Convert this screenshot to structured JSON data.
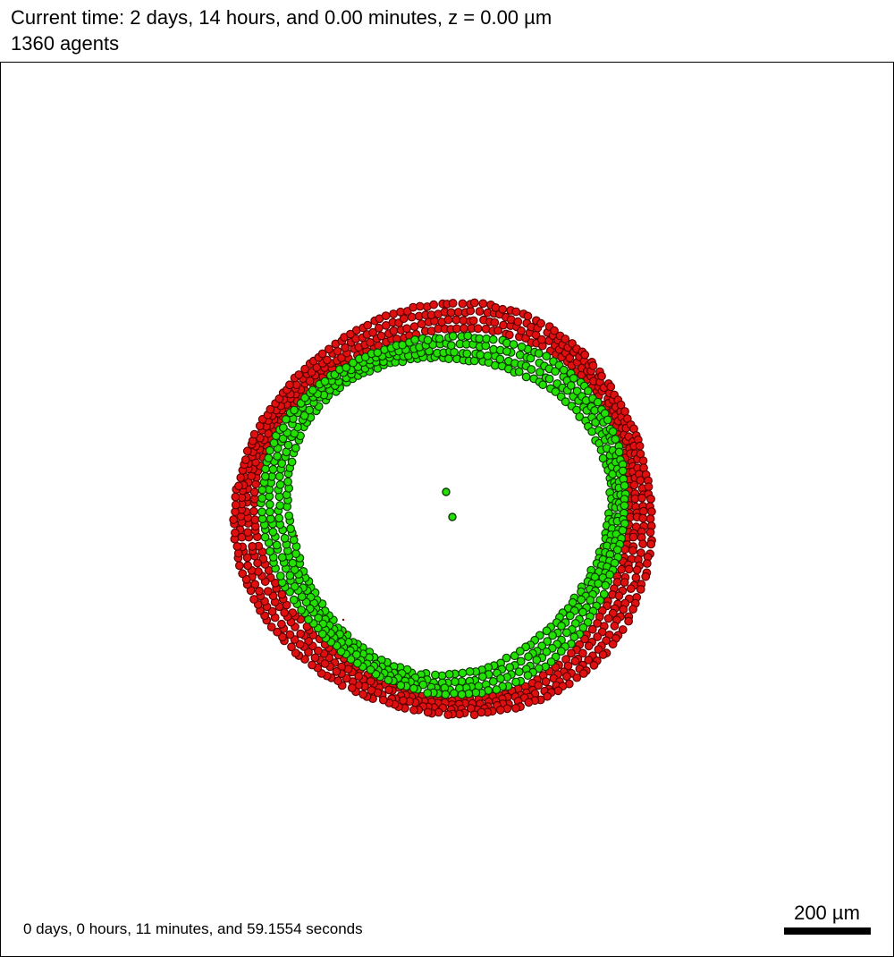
{
  "header": {
    "time_label": "Current time: 2 days, 14 hours, and 0.00 minutes, z = 0.00 µm",
    "agent_count": "1360 agents"
  },
  "footer": {
    "elapsed_label": "0 days, 0 hours, 11 minutes, and 59.1554 seconds"
  },
  "scale_bar": {
    "label": "200 µm",
    "length_um": 200
  },
  "cells": {
    "outer_color": "#e01010",
    "outer_stroke": "#5a0000",
    "inner_color": "#22e000",
    "inner_stroke": "#0a3a00",
    "debris_color": "#8b0000"
  }
}
